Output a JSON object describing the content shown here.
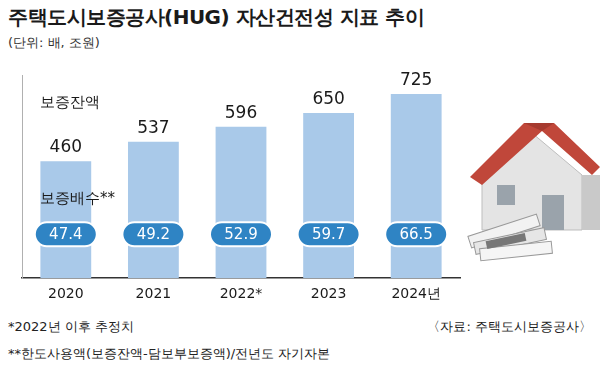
{
  "chart_data": {
    "type": "bar",
    "title": "주택도시보증공사(HUG) 자산건전성 지표 추이",
    "subtitle": "(단위: 배, 조원)",
    "categories": [
      "2020",
      "2021",
      "2022*",
      "2023",
      "2024년"
    ],
    "series": [
      {
        "name": "보증잔액",
        "values": [
          460,
          537,
          596,
          650,
          725
        ],
        "color": "#a9c9e9"
      },
      {
        "name": "보증배수**",
        "type": "label",
        "values": [
          47.4,
          49.2,
          52.9,
          59.7,
          66.5
        ],
        "color": "#2f84c4"
      }
    ],
    "ylim": [
      0,
      800
    ],
    "grid": false,
    "data_labels": true,
    "tick_labels": "x",
    "annotations": [
      "*2022년 이후 추정치",
      "**한도사용액(보증잔액-담보부보증액)/전년도 자기자본"
    ],
    "source": "〈자료: 주택도시보증공사〉"
  }
}
